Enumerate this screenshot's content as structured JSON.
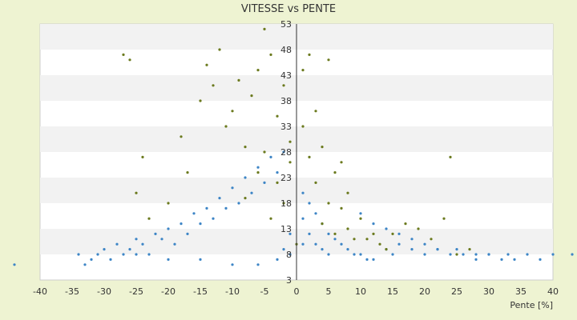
{
  "chart_data": {
    "type": "scatter",
    "title": "VITESSE vs PENTE",
    "xlabel": "Pente [%]",
    "ylabel": "",
    "xlim": [
      -40,
      40
    ],
    "ylim": [
      3,
      53
    ],
    "x_ticks": [
      "-40",
      "-35",
      "-30",
      "-25",
      "-20",
      "-15",
      "-10",
      "-5",
      "0",
      "5",
      "10",
      "15",
      "20",
      "25",
      "30",
      "35",
      "40"
    ],
    "y_ticks": [
      "3",
      "8",
      "13",
      "18",
      "23",
      "28",
      "33",
      "38",
      "43",
      "48",
      "53"
    ],
    "grid": "horizontal bands",
    "legend": "none",
    "series": [
      {
        "color": "#3d85c6",
        "points": [
          [
            -44,
            6
          ],
          [
            -34,
            8
          ],
          [
            -33,
            6
          ],
          [
            -32,
            7
          ],
          [
            -31,
            8
          ],
          [
            -30,
            9
          ],
          [
            -29,
            7
          ],
          [
            -28,
            10
          ],
          [
            -27,
            8
          ],
          [
            -26,
            9
          ],
          [
            -25,
            11
          ],
          [
            -24,
            10
          ],
          [
            -23,
            8
          ],
          [
            -22,
            12
          ],
          [
            -21,
            11
          ],
          [
            -20,
            13
          ],
          [
            -19,
            10
          ],
          [
            -18,
            14
          ],
          [
            -17,
            12
          ],
          [
            -16,
            16
          ],
          [
            -15,
            14
          ],
          [
            -14,
            17
          ],
          [
            -13,
            15
          ],
          [
            -12,
            19
          ],
          [
            -11,
            17
          ],
          [
            -10,
            21
          ],
          [
            -9,
            18
          ],
          [
            -8,
            23
          ],
          [
            -7,
            20
          ],
          [
            -6,
            25
          ],
          [
            -5,
            22
          ],
          [
            -4,
            27
          ],
          [
            -3,
            24
          ],
          [
            -2,
            28
          ],
          [
            -1,
            8
          ],
          [
            -1,
            12
          ],
          [
            -2,
            9
          ],
          [
            -3,
            7
          ],
          [
            -6,
            6
          ],
          [
            -10,
            6
          ],
          [
            -15,
            7
          ],
          [
            -20,
            7
          ],
          [
            -25,
            8
          ],
          [
            1,
            20
          ],
          [
            1,
            15
          ],
          [
            1,
            10
          ],
          [
            2,
            12
          ],
          [
            2,
            18
          ],
          [
            3,
            16
          ],
          [
            3,
            10
          ],
          [
            4,
            14
          ],
          [
            4,
            9
          ],
          [
            5,
            12
          ],
          [
            5,
            8
          ],
          [
            6,
            11
          ],
          [
            7,
            10
          ],
          [
            8,
            9
          ],
          [
            9,
            8
          ],
          [
            10,
            8
          ],
          [
            11,
            7
          ],
          [
            12,
            7
          ],
          [
            14,
            9
          ],
          [
            15,
            8
          ],
          [
            16,
            10
          ],
          [
            18,
            9
          ],
          [
            20,
            8
          ],
          [
            22,
            9
          ],
          [
            24,
            8
          ],
          [
            26,
            8
          ],
          [
            28,
            7
          ],
          [
            30,
            8
          ],
          [
            32,
            7
          ],
          [
            34,
            7
          ],
          [
            36,
            8
          ],
          [
            38,
            7
          ],
          [
            40,
            8
          ],
          [
            43,
            8
          ],
          [
            10,
            16
          ],
          [
            12,
            14
          ],
          [
            14,
            13
          ],
          [
            16,
            12
          ],
          [
            18,
            11
          ],
          [
            20,
            10
          ],
          [
            22,
            9
          ],
          [
            25,
            9
          ],
          [
            28,
            8
          ],
          [
            30,
            8
          ],
          [
            33,
            8
          ]
        ]
      },
      {
        "color": "#6b7a1e",
        "points": [
          [
            -27,
            47
          ],
          [
            -26,
            46
          ],
          [
            -25,
            20
          ],
          [
            -24,
            27
          ],
          [
            -23,
            15
          ],
          [
            -20,
            18
          ],
          [
            -18,
            31
          ],
          [
            -17,
            24
          ],
          [
            -15,
            38
          ],
          [
            -14,
            45
          ],
          [
            -13,
            41
          ],
          [
            -12,
            48
          ],
          [
            -11,
            33
          ],
          [
            -10,
            36
          ],
          [
            -9,
            42
          ],
          [
            -8,
            29
          ],
          [
            -7,
            39
          ],
          [
            -6,
            44
          ],
          [
            -5,
            52
          ],
          [
            -4,
            47
          ],
          [
            -3,
            35
          ],
          [
            -2,
            41
          ],
          [
            -1,
            30
          ],
          [
            -5,
            28
          ],
          [
            -3,
            22
          ],
          [
            -6,
            24
          ],
          [
            -8,
            19
          ],
          [
            -2,
            18
          ],
          [
            -4,
            15
          ],
          [
            -1,
            26
          ],
          [
            0,
            10
          ],
          [
            1,
            33
          ],
          [
            1,
            44
          ],
          [
            2,
            27
          ],
          [
            2,
            47
          ],
          [
            3,
            36
          ],
          [
            3,
            22
          ],
          [
            4,
            29
          ],
          [
            4,
            14
          ],
          [
            5,
            18
          ],
          [
            5,
            46
          ],
          [
            6,
            24
          ],
          [
            6,
            12
          ],
          [
            7,
            17
          ],
          [
            7,
            26
          ],
          [
            8,
            13
          ],
          [
            8,
            20
          ],
          [
            9,
            11
          ],
          [
            10,
            15
          ],
          [
            11,
            11
          ],
          [
            12,
            12
          ],
          [
            13,
            10
          ],
          [
            14,
            9
          ],
          [
            15,
            12
          ],
          [
            17,
            14
          ],
          [
            19,
            13
          ],
          [
            21,
            11
          ],
          [
            23,
            15
          ],
          [
            24,
            27
          ],
          [
            25,
            8
          ],
          [
            27,
            9
          ]
        ]
      }
    ]
  }
}
